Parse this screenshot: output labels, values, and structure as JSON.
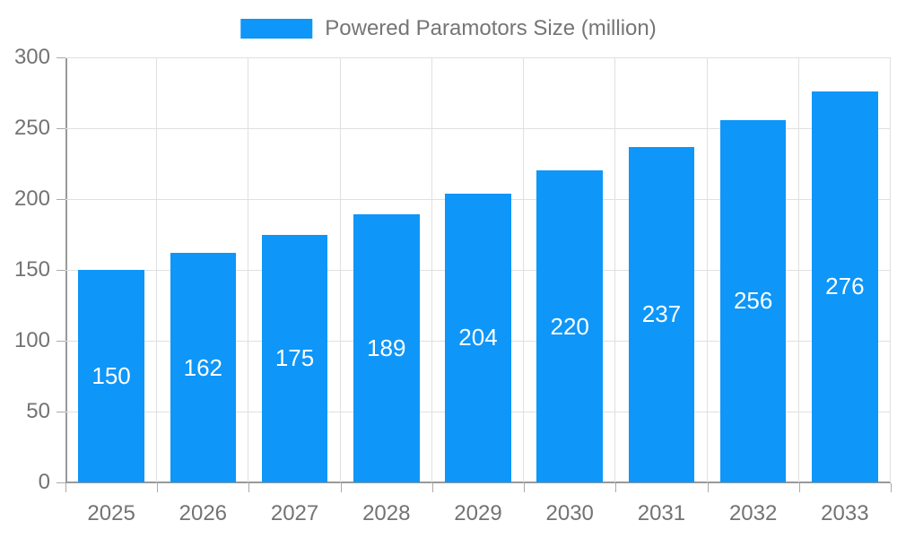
{
  "chart_data": {
    "type": "bar",
    "title": "",
    "legend": "Powered Paramotors Size (million)",
    "legend_position": "top-center",
    "categories": [
      "2025",
      "2026",
      "2027",
      "2028",
      "2029",
      "2030",
      "2031",
      "2032",
      "2033"
    ],
    "values": [
      150,
      162,
      175,
      189,
      204,
      220,
      237,
      256,
      276
    ],
    "xlabel": "",
    "ylabel": "",
    "ylim": [
      0,
      300
    ],
    "yticks": [
      0,
      50,
      100,
      150,
      200,
      250,
      300
    ],
    "grid": true,
    "bar_labels_inside": true,
    "colors": {
      "bar": "#0e96f9",
      "bar_label": "#ffffff",
      "axis_line": "#999999",
      "tick_mark": "#aaaaaa",
      "grid_line": "#e0e0e0",
      "tick_text": "#737373",
      "legend_text": "#757575",
      "background": "#ffffff"
    }
  }
}
